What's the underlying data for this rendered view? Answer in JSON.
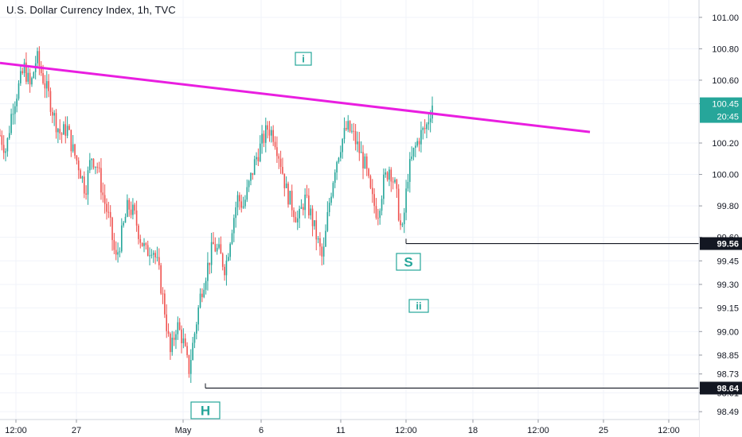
{
  "chart_data": {
    "type": "candlestick",
    "title": "U.S. Dollar Currency Index, 1h, TVC",
    "colors": {
      "up": "#26a69a",
      "down": "#ef5350",
      "trendline": "#e91ee0",
      "level": "#131722",
      "label_box": "#26a69a",
      "price_tag": "#26a69a"
    },
    "ylim": [
      98.44,
      101.07
    ],
    "y_ticks": [
      98.49,
      98.61,
      98.73,
      98.85,
      99.0,
      99.15,
      99.3,
      99.45,
      99.6,
      99.8,
      100.0,
      100.2,
      100.45,
      100.6,
      100.8,
      101.0
    ],
    "x_ticks": [
      "12:00",
      "27",
      "May",
      "6",
      "11",
      "12:00",
      "18",
      "12:00",
      "25",
      "12:00"
    ],
    "last_price": {
      "value": "100.45",
      "countdown": "20:45"
    },
    "levels": [
      {
        "label": "99.56",
        "value": 99.56
      },
      {
        "label": "98.64",
        "value": 98.64
      }
    ],
    "wave_labels": [
      "i",
      "ii",
      "H",
      "S"
    ],
    "trendline": {
      "from_price": 100.71,
      "to_price": 100.27
    },
    "price_path": [
      100.25,
      100.15,
      100.42,
      100.55,
      100.68,
      100.55,
      100.75,
      100.62,
      100.5,
      100.35,
      100.25,
      100.3,
      100.15,
      100.05,
      99.9,
      100.12,
      100.05,
      99.85,
      99.7,
      99.45,
      99.62,
      99.8,
      99.75,
      99.6,
      99.5,
      99.55,
      99.4,
      99.15,
      98.85,
      99.05,
      98.95,
      98.75,
      99.0,
      99.25,
      99.4,
      99.55,
      99.5,
      99.4,
      99.65,
      99.85,
      99.8,
      99.95,
      100.1,
      100.2,
      100.3,
      100.25,
      100.1,
      99.9,
      99.8,
      99.7,
      99.85,
      99.75,
      99.6,
      99.45,
      99.8,
      100.05,
      100.2,
      100.3,
      100.25,
      100.15,
      100.05,
      99.85,
      99.75,
      99.95,
      100.05,
      99.9,
      99.6,
      100.0,
      100.15,
      100.25,
      100.3,
      100.45
    ]
  }
}
